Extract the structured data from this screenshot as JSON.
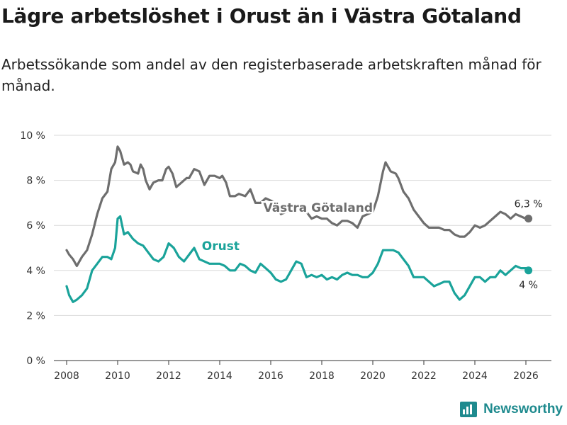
{
  "header": {
    "title": "Lägre arbetslöshet i Orust än i Västra Götaland",
    "subtitle": "Arbetssökande som andel av den registerbaserade arbetskraften månad för månad."
  },
  "brand": {
    "name": "Newsworthy",
    "icon": "newsworthy-logo-icon",
    "color": "#1e8a8e"
  },
  "chart_data": {
    "type": "line",
    "title": "Lägre arbetslöshet i Orust än i Västra Götaland",
    "xlabel": "",
    "ylabel": "",
    "xlim": [
      2007.5,
      2027
    ],
    "ylim": [
      0,
      10
    ],
    "grid": true,
    "x_ticks": [
      2008,
      2010,
      2012,
      2014,
      2016,
      2018,
      2020,
      2022,
      2024,
      2026
    ],
    "x_tick_labels": [
      "2008",
      "2010",
      "2012",
      "2014",
      "2016",
      "2018",
      "2020",
      "2022",
      "2024",
      "2026"
    ],
    "y_ticks": [
      0,
      2,
      4,
      6,
      8,
      10
    ],
    "y_tick_labels": [
      "0 %",
      "2 %",
      "4 %",
      "6 %",
      "8 %",
      "10 %"
    ],
    "series": [
      {
        "name": "Västra Götaland",
        "label": "Västra Götaland",
        "color": "#6e6e6e",
        "end_label": "6,3 %",
        "points": [
          [
            2008.0,
            4.9
          ],
          [
            2008.1,
            4.7
          ],
          [
            2008.25,
            4.5
          ],
          [
            2008.4,
            4.2
          ],
          [
            2008.6,
            4.6
          ],
          [
            2008.8,
            4.9
          ],
          [
            2009.0,
            5.6
          ],
          [
            2009.2,
            6.5
          ],
          [
            2009.4,
            7.2
          ],
          [
            2009.6,
            7.5
          ],
          [
            2009.75,
            8.5
          ],
          [
            2009.9,
            8.8
          ],
          [
            2010.0,
            9.5
          ],
          [
            2010.1,
            9.3
          ],
          [
            2010.25,
            8.7
          ],
          [
            2010.4,
            8.8
          ],
          [
            2010.5,
            8.7
          ],
          [
            2010.6,
            8.4
          ],
          [
            2010.8,
            8.3
          ],
          [
            2010.9,
            8.7
          ],
          [
            2011.0,
            8.5
          ],
          [
            2011.1,
            8.0
          ],
          [
            2011.25,
            7.6
          ],
          [
            2011.4,
            7.9
          ],
          [
            2011.6,
            8.0
          ],
          [
            2011.75,
            8.0
          ],
          [
            2011.9,
            8.5
          ],
          [
            2012.0,
            8.6
          ],
          [
            2012.15,
            8.3
          ],
          [
            2012.3,
            7.7
          ],
          [
            2012.5,
            7.9
          ],
          [
            2012.7,
            8.1
          ],
          [
            2012.8,
            8.1
          ],
          [
            2013.0,
            8.5
          ],
          [
            2013.2,
            8.4
          ],
          [
            2013.4,
            7.8
          ],
          [
            2013.6,
            8.2
          ],
          [
            2013.8,
            8.2
          ],
          [
            2014.0,
            8.1
          ],
          [
            2014.1,
            8.2
          ],
          [
            2014.25,
            7.9
          ],
          [
            2014.4,
            7.3
          ],
          [
            2014.6,
            7.3
          ],
          [
            2014.75,
            7.4
          ],
          [
            2015.0,
            7.3
          ],
          [
            2015.2,
            7.6
          ],
          [
            2015.4,
            7.0
          ],
          [
            2015.6,
            7.0
          ],
          [
            2015.8,
            7.2
          ],
          [
            2016.0,
            7.1
          ],
          [
            2016.2,
            7.0
          ],
          [
            2016.4,
            6.5
          ],
          [
            2016.6,
            6.6
          ],
          [
            2016.8,
            6.7
          ],
          [
            2017.0,
            6.9
          ],
          [
            2017.2,
            6.7
          ],
          [
            2017.4,
            6.6
          ],
          [
            2017.6,
            6.3
          ],
          [
            2017.8,
            6.4
          ],
          [
            2018.0,
            6.3
          ],
          [
            2018.2,
            6.3
          ],
          [
            2018.4,
            6.1
          ],
          [
            2018.6,
            6.0
          ],
          [
            2018.8,
            6.2
          ],
          [
            2019.0,
            6.2
          ],
          [
            2019.2,
            6.1
          ],
          [
            2019.4,
            5.9
          ],
          [
            2019.6,
            6.4
          ],
          [
            2019.8,
            6.5
          ],
          [
            2020.0,
            6.6
          ],
          [
            2020.2,
            7.3
          ],
          [
            2020.4,
            8.4
          ],
          [
            2020.5,
            8.8
          ],
          [
            2020.7,
            8.4
          ],
          [
            2020.9,
            8.3
          ],
          [
            2021.0,
            8.1
          ],
          [
            2021.2,
            7.5
          ],
          [
            2021.4,
            7.2
          ],
          [
            2021.6,
            6.7
          ],
          [
            2021.8,
            6.4
          ],
          [
            2022.0,
            6.1
          ],
          [
            2022.2,
            5.9
          ],
          [
            2022.4,
            5.9
          ],
          [
            2022.6,
            5.9
          ],
          [
            2022.8,
            5.8
          ],
          [
            2023.0,
            5.8
          ],
          [
            2023.2,
            5.6
          ],
          [
            2023.4,
            5.5
          ],
          [
            2023.6,
            5.5
          ],
          [
            2023.8,
            5.7
          ],
          [
            2024.0,
            6.0
          ],
          [
            2024.2,
            5.9
          ],
          [
            2024.4,
            6.0
          ],
          [
            2024.6,
            6.2
          ],
          [
            2024.8,
            6.4
          ],
          [
            2025.0,
            6.6
          ],
          [
            2025.2,
            6.5
          ],
          [
            2025.4,
            6.3
          ],
          [
            2025.6,
            6.5
          ],
          [
            2025.8,
            6.4
          ],
          [
            2026.0,
            6.3
          ],
          [
            2026.1,
            6.3
          ]
        ]
      },
      {
        "name": "Orust",
        "label": "Orust",
        "color": "#1aa39a",
        "end_label": "4 %",
        "points": [
          [
            2008.0,
            3.3
          ],
          [
            2008.1,
            2.9
          ],
          [
            2008.25,
            2.6
          ],
          [
            2008.4,
            2.7
          ],
          [
            2008.6,
            2.9
          ],
          [
            2008.8,
            3.2
          ],
          [
            2009.0,
            4.0
          ],
          [
            2009.2,
            4.3
          ],
          [
            2009.4,
            4.6
          ],
          [
            2009.6,
            4.6
          ],
          [
            2009.75,
            4.5
          ],
          [
            2009.9,
            5.0
          ],
          [
            2010.0,
            6.3
          ],
          [
            2010.1,
            6.4
          ],
          [
            2010.25,
            5.6
          ],
          [
            2010.4,
            5.7
          ],
          [
            2010.6,
            5.4
          ],
          [
            2010.8,
            5.2
          ],
          [
            2011.0,
            5.1
          ],
          [
            2011.2,
            4.8
          ],
          [
            2011.4,
            4.5
          ],
          [
            2011.6,
            4.4
          ],
          [
            2011.8,
            4.6
          ],
          [
            2012.0,
            5.2
          ],
          [
            2012.2,
            5.0
          ],
          [
            2012.4,
            4.6
          ],
          [
            2012.6,
            4.4
          ],
          [
            2012.8,
            4.7
          ],
          [
            2013.0,
            5.0
          ],
          [
            2013.2,
            4.5
          ],
          [
            2013.4,
            4.4
          ],
          [
            2013.6,
            4.3
          ],
          [
            2013.8,
            4.3
          ],
          [
            2014.0,
            4.3
          ],
          [
            2014.2,
            4.2
          ],
          [
            2014.4,
            4.0
          ],
          [
            2014.6,
            4.0
          ],
          [
            2014.8,
            4.3
          ],
          [
            2015.0,
            4.2
          ],
          [
            2015.2,
            4.0
          ],
          [
            2015.4,
            3.9
          ],
          [
            2015.6,
            4.3
          ],
          [
            2015.8,
            4.1
          ],
          [
            2016.0,
            3.9
          ],
          [
            2016.2,
            3.6
          ],
          [
            2016.4,
            3.5
          ],
          [
            2016.6,
            3.6
          ],
          [
            2016.8,
            4.0
          ],
          [
            2017.0,
            4.4
          ],
          [
            2017.2,
            4.3
          ],
          [
            2017.4,
            3.7
          ],
          [
            2017.6,
            3.8
          ],
          [
            2017.8,
            3.7
          ],
          [
            2018.0,
            3.8
          ],
          [
            2018.2,
            3.6
          ],
          [
            2018.4,
            3.7
          ],
          [
            2018.6,
            3.6
          ],
          [
            2018.8,
            3.8
          ],
          [
            2019.0,
            3.9
          ],
          [
            2019.2,
            3.8
          ],
          [
            2019.4,
            3.8
          ],
          [
            2019.6,
            3.7
          ],
          [
            2019.8,
            3.7
          ],
          [
            2020.0,
            3.9
          ],
          [
            2020.2,
            4.3
          ],
          [
            2020.4,
            4.9
          ],
          [
            2020.6,
            4.9
          ],
          [
            2020.8,
            4.9
          ],
          [
            2021.0,
            4.8
          ],
          [
            2021.2,
            4.5
          ],
          [
            2021.4,
            4.2
          ],
          [
            2021.6,
            3.7
          ],
          [
            2021.8,
            3.7
          ],
          [
            2022.0,
            3.7
          ],
          [
            2022.2,
            3.5
          ],
          [
            2022.4,
            3.3
          ],
          [
            2022.6,
            3.4
          ],
          [
            2022.8,
            3.5
          ],
          [
            2023.0,
            3.5
          ],
          [
            2023.2,
            3.0
          ],
          [
            2023.4,
            2.7
          ],
          [
            2023.6,
            2.9
          ],
          [
            2023.8,
            3.3
          ],
          [
            2024.0,
            3.7
          ],
          [
            2024.2,
            3.7
          ],
          [
            2024.4,
            3.5
          ],
          [
            2024.6,
            3.7
          ],
          [
            2024.8,
            3.7
          ],
          [
            2025.0,
            4.0
          ],
          [
            2025.2,
            3.8
          ],
          [
            2025.4,
            4.0
          ],
          [
            2025.6,
            4.2
          ],
          [
            2025.8,
            4.1
          ],
          [
            2026.0,
            4.1
          ],
          [
            2026.1,
            4.0
          ]
        ]
      }
    ]
  }
}
